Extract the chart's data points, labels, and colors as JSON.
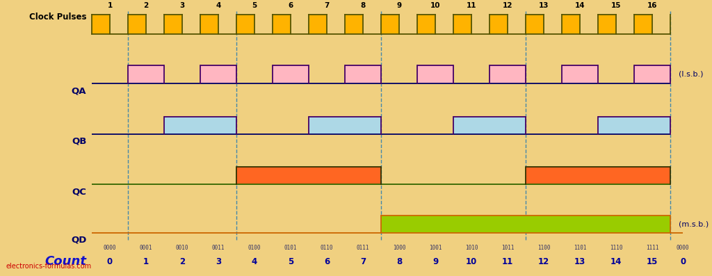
{
  "background_color": "#F0D080",
  "fig_width": 10.24,
  "fig_height": 3.97,
  "dpi": 100,
  "clock_color": "#FFB300",
  "clock_edge_color": "#555500",
  "qa_color": "#FFB6C1",
  "qa_edge_color": "#440066",
  "qb_color": "#ADD8E6",
  "qb_edge_color": "#440066",
  "qc_color": "#FF6622",
  "qc_edge_color": "#333300",
  "qc_line_color": "#336600",
  "qd_color": "#99CC00",
  "qd_edge_color": "#CC6600",
  "qd_line_color": "#CC6600",
  "signal_line_color": "#000066",
  "dashed_color": "#4488AA",
  "label_color": "#000066",
  "count_color": "#000099",
  "count_label_color": "#1111CC",
  "binary_color": "#333366",
  "watermark_color": "#CC0000",
  "n_periods": 16,
  "binary_labels": [
    "0000",
    "0001",
    "0010",
    "0011",
    "0100",
    "0101",
    "0110",
    "0111",
    "1000",
    "1001",
    "1010",
    "1011",
    "1100",
    "1101",
    "1110",
    "1111",
    "0000"
  ],
  "count_labels": [
    "0",
    "1",
    "2",
    "3",
    "4",
    "5",
    "6",
    "7",
    "8",
    "9",
    "10",
    "11",
    "12",
    "13",
    "14",
    "15",
    "0"
  ],
  "clock_pulse_numbers": [
    "1",
    "2",
    "3",
    "4",
    "5",
    "6",
    "7",
    "8",
    "9",
    "10",
    "11",
    "12",
    "13",
    "14",
    "15",
    "16"
  ],
  "qa_vals": [
    0,
    1,
    0,
    1,
    0,
    1,
    0,
    1,
    0,
    1,
    0,
    1,
    0,
    1,
    0,
    1
  ],
  "qb_vals": [
    0,
    0,
    1,
    1,
    0,
    0,
    1,
    1,
    0,
    0,
    1,
    1,
    0,
    0,
    1,
    1
  ],
  "qc_vals": [
    0,
    0,
    0,
    0,
    1,
    1,
    1,
    1,
    0,
    0,
    0,
    0,
    1,
    1,
    1,
    1
  ],
  "qd_vals": [
    0,
    0,
    0,
    0,
    0,
    0,
    0,
    0,
    1,
    1,
    1,
    1,
    1,
    1,
    1,
    1
  ]
}
